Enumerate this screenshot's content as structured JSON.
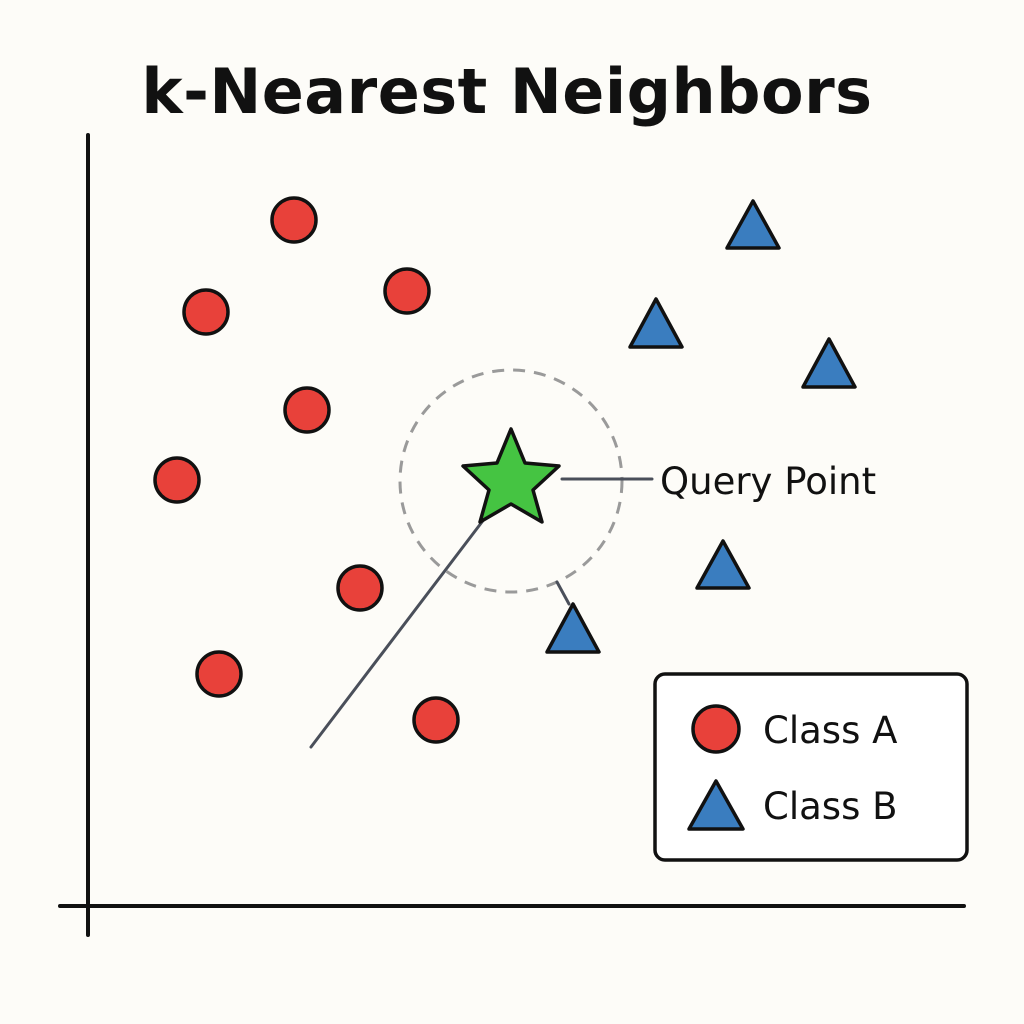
{
  "title": "k-Nearest Neighbors",
  "query_label": "Query Point",
  "legend": {
    "class_a": "Class A",
    "class_b": "Class B"
  },
  "colors": {
    "class_a": "#e8413a",
    "class_b": "#3a7dbf",
    "query": "#45c442",
    "outline": "#111111",
    "radius_circle": "#9a9a9a",
    "connector": "#4a4f5a"
  }
}
